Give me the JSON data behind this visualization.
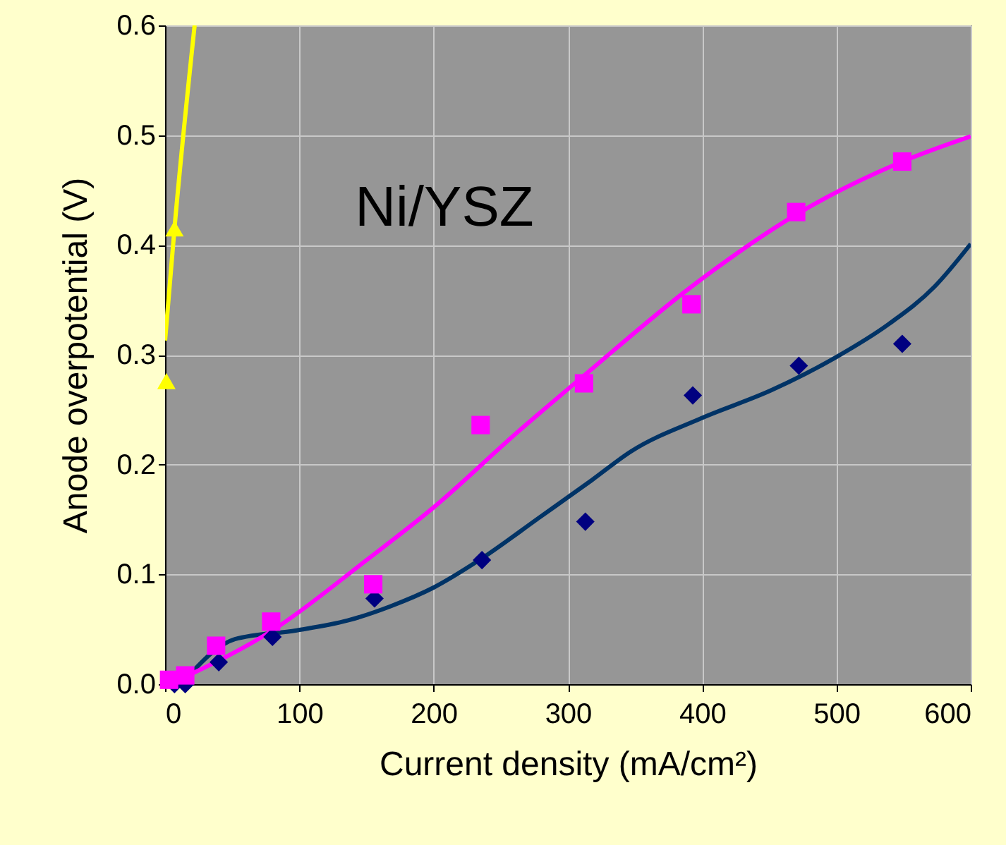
{
  "chart_data": {
    "type": "scatter",
    "xlabel": "Current density (mA/cm²)",
    "ylabel": "Anode overpotential (V)",
    "annotations": [
      "Ni/YSZ"
    ],
    "xlim": [
      0,
      600
    ],
    "xticks": [
      0,
      100,
      200,
      300,
      400,
      500,
      600
    ],
    "ylim": [
      0,
      0.6
    ],
    "yticks": [
      {
        "value": 0,
        "label": "0.0"
      },
      0.1,
      0.2,
      0.3,
      0.4,
      0.5,
      0.6
    ],
    "grid": true,
    "series": [
      {
        "type": "line",
        "color": "#003366",
        "line_style": "solid",
        "marker": "none",
        "x": [
          14,
          52,
          98,
          136,
          168,
          200,
          234,
          279,
          318,
          347,
          399,
          452,
          500,
          539,
          573,
          600
        ],
        "values": [
          0.003,
          0.041,
          0.049,
          0.058,
          0.071,
          0.088,
          0.113,
          0.152,
          0.186,
          0.212,
          0.242,
          0.268,
          0.298,
          0.328,
          0.362,
          0.401
        ]
      },
      {
        "type": "line",
        "color": "#ff00ff",
        "line_style": "solid",
        "marker": "none",
        "x": [
          14,
          80,
          150,
          200,
          262,
          311,
          392,
          469,
          549,
          600
        ],
        "values": [
          0.006,
          0.049,
          0.113,
          0.161,
          0.229,
          0.28,
          0.362,
          0.427,
          0.476,
          0.499
        ]
      },
      {
        "type": "line",
        "color": "#ffff00",
        "line_style": "solid",
        "marker": "none",
        "x": [
          0,
          7,
          22
        ],
        "values": [
          0.313,
          0.415,
          0.6
        ]
      },
      {
        "color": "#000080",
        "marker": "diamond",
        "x": [
          7,
          15,
          40,
          80,
          156,
          236,
          313,
          393,
          472,
          549
        ],
        "values": [
          0.0,
          0.0,
          0.02,
          0.043,
          0.078,
          0.113,
          0.148,
          0.263,
          0.29,
          0.31
        ]
      },
      {
        "color": "#ff00ff",
        "marker": "square",
        "x": [
          3,
          15,
          38,
          79,
          155,
          235,
          312,
          392,
          470,
          549
        ],
        "values": [
          0.004,
          0.008,
          0.035,
          0.057,
          0.091,
          0.236,
          0.274,
          0.346,
          0.43,
          0.476
        ]
      },
      {
        "color": "#ffff00",
        "marker": "triangle",
        "x": [
          1,
          7
        ],
        "values": [
          0.276,
          0.415
        ]
      }
    ]
  }
}
